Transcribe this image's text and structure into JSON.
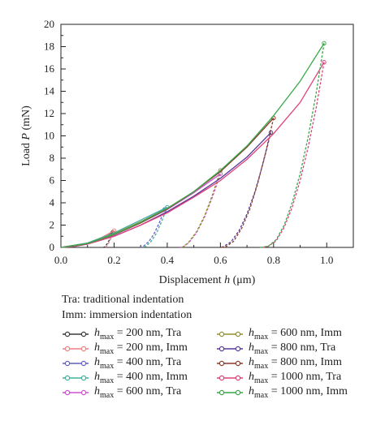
{
  "chart_data": {
    "type": "line",
    "title": "",
    "xlabel_prefix": "Displacement ",
    "xlabel_var": "h",
    "xlabel_unit": " (μm)",
    "ylabel_prefix": "Load ",
    "ylabel_var": "P",
    "ylabel_unit": " (mN)",
    "xlim": [
      0,
      1.1
    ],
    "ylim": [
      0,
      20
    ],
    "x_ticks": [
      "0.0",
      "0.2",
      "0.4",
      "0.6",
      "0.8",
      "1.0"
    ],
    "y_ticks": [
      "0",
      "2",
      "4",
      "6",
      "8",
      "10",
      "12",
      "14",
      "16",
      "18",
      "20"
    ],
    "grid": false,
    "legend_position": "bottom",
    "notes": [
      "Tra: traditional indentation",
      "Imm: immersion indentation"
    ],
    "series": [
      {
        "name": "= 200 nm, Tra",
        "color": "#3a3a3a",
        "marker": "square",
        "loading": [
          [
            0,
            0
          ],
          [
            0.05,
            0.08
          ],
          [
            0.1,
            0.3
          ],
          [
            0.15,
            0.75
          ],
          [
            0.195,
            1.35
          ]
        ],
        "unloading": [
          [
            0.195,
            1.35
          ],
          [
            0.185,
            0.8
          ],
          [
            0.175,
            0.35
          ],
          [
            0.165,
            0.05
          ],
          [
            0.16,
            0
          ]
        ]
      },
      {
        "name": "= 200 nm, Imm",
        "color": "#f08080",
        "marker": "circle",
        "loading": [
          [
            0,
            0
          ],
          [
            0.05,
            0.1
          ],
          [
            0.1,
            0.35
          ],
          [
            0.15,
            0.85
          ],
          [
            0.2,
            1.5
          ]
        ],
        "unloading": [
          [
            0.2,
            1.5
          ],
          [
            0.19,
            0.9
          ],
          [
            0.18,
            0.4
          ],
          [
            0.17,
            0.05
          ],
          [
            0.165,
            0
          ]
        ]
      },
      {
        "name": "= 400 nm, Tra",
        "color": "#6060c0",
        "marker": "triangle-up",
        "loading": [
          [
            0,
            0
          ],
          [
            0.1,
            0.35
          ],
          [
            0.2,
            1.2
          ],
          [
            0.3,
            2.3
          ],
          [
            0.39,
            3.4
          ]
        ],
        "unloading": [
          [
            0.39,
            3.4
          ],
          [
            0.37,
            2.2
          ],
          [
            0.35,
            1.2
          ],
          [
            0.33,
            0.5
          ],
          [
            0.31,
            0.1
          ],
          [
            0.3,
            0
          ]
        ]
      },
      {
        "name": "= 400 nm, Imm",
        "color": "#40b0a0",
        "marker": "triangle-down",
        "loading": [
          [
            0,
            0
          ],
          [
            0.1,
            0.4
          ],
          [
            0.2,
            1.3
          ],
          [
            0.3,
            2.45
          ],
          [
            0.4,
            3.6
          ]
        ],
        "unloading": [
          [
            0.4,
            3.6
          ],
          [
            0.38,
            2.4
          ],
          [
            0.36,
            1.3
          ],
          [
            0.34,
            0.55
          ],
          [
            0.32,
            0.1
          ],
          [
            0.31,
            0
          ]
        ]
      },
      {
        "name": "= 600 nm, Tra",
        "color": "#d050d0",
        "marker": "diamond",
        "loading": [
          [
            0,
            0
          ],
          [
            0.1,
            0.3
          ],
          [
            0.2,
            1.1
          ],
          [
            0.3,
            2.2
          ],
          [
            0.4,
            3.4
          ],
          [
            0.5,
            4.9
          ],
          [
            0.6,
            6.6
          ]
        ],
        "unloading": [
          [
            0.6,
            6.6
          ],
          [
            0.57,
            4.5
          ],
          [
            0.54,
            2.7
          ],
          [
            0.51,
            1.3
          ],
          [
            0.48,
            0.4
          ],
          [
            0.46,
            0.05
          ],
          [
            0.45,
            0
          ]
        ]
      },
      {
        "name": "= 600 nm, Imm",
        "color": "#909030",
        "marker": "diamond",
        "loading": [
          [
            0,
            0
          ],
          [
            0.1,
            0.35
          ],
          [
            0.2,
            1.2
          ],
          [
            0.3,
            2.3
          ],
          [
            0.4,
            3.5
          ],
          [
            0.5,
            5.0
          ],
          [
            0.6,
            6.9
          ]
        ],
        "unloading": [
          [
            0.6,
            6.9
          ],
          [
            0.57,
            4.7
          ],
          [
            0.54,
            2.8
          ],
          [
            0.51,
            1.4
          ],
          [
            0.48,
            0.45
          ],
          [
            0.46,
            0.05
          ],
          [
            0.45,
            0
          ]
        ]
      },
      {
        "name": "= 800 nm, Tra",
        "color": "#5a3a9a",
        "marker": "triangle-left",
        "loading": [
          [
            0,
            0
          ],
          [
            0.1,
            0.3
          ],
          [
            0.2,
            1.0
          ],
          [
            0.3,
            2.0
          ],
          [
            0.4,
            3.2
          ],
          [
            0.5,
            4.6
          ],
          [
            0.6,
            6.2
          ],
          [
            0.7,
            8.1
          ],
          [
            0.79,
            10.3
          ]
        ],
        "unloading": [
          [
            0.79,
            10.3
          ],
          [
            0.76,
            7.5
          ],
          [
            0.73,
            5.0
          ],
          [
            0.7,
            3.0
          ],
          [
            0.67,
            1.5
          ],
          [
            0.64,
            0.5
          ],
          [
            0.61,
            0.05
          ],
          [
            0.6,
            0
          ]
        ]
      },
      {
        "name": "= 800 nm, Imm",
        "color": "#8b3a2a",
        "marker": "triangle-right",
        "loading": [
          [
            0,
            0
          ],
          [
            0.1,
            0.35
          ],
          [
            0.2,
            1.15
          ],
          [
            0.3,
            2.2
          ],
          [
            0.4,
            3.45
          ],
          [
            0.5,
            5.0
          ],
          [
            0.6,
            6.8
          ],
          [
            0.7,
            9.0
          ],
          [
            0.8,
            11.6
          ]
        ],
        "unloading": [
          [
            0.8,
            11.6
          ],
          [
            0.77,
            8.5
          ],
          [
            0.74,
            5.7
          ],
          [
            0.71,
            3.4
          ],
          [
            0.68,
            1.7
          ],
          [
            0.65,
            0.55
          ],
          [
            0.62,
            0.05
          ],
          [
            0.6,
            0
          ]
        ]
      },
      {
        "name": "= 1000 nm, Tra",
        "color": "#e0407a",
        "marker": "star",
        "loading": [
          [
            0,
            0
          ],
          [
            0.1,
            0.3
          ],
          [
            0.2,
            1.0
          ],
          [
            0.3,
            2.0
          ],
          [
            0.4,
            3.1
          ],
          [
            0.5,
            4.5
          ],
          [
            0.6,
            6.0
          ],
          [
            0.7,
            7.9
          ],
          [
            0.8,
            10.2
          ],
          [
            0.9,
            13.0
          ],
          [
            0.99,
            16.6
          ]
        ],
        "unloading": [
          [
            0.99,
            16.6
          ],
          [
            0.96,
            12.5
          ],
          [
            0.93,
            9.0
          ],
          [
            0.9,
            6.0
          ],
          [
            0.87,
            3.6
          ],
          [
            0.84,
            1.8
          ],
          [
            0.81,
            0.6
          ],
          [
            0.78,
            0.1
          ],
          [
            0.76,
            0
          ]
        ]
      },
      {
        "name": "= 1000 nm, Imm",
        "color": "#3aa84a",
        "marker": "hexagon",
        "loading": [
          [
            0,
            0
          ],
          [
            0.1,
            0.35
          ],
          [
            0.2,
            1.15
          ],
          [
            0.3,
            2.25
          ],
          [
            0.4,
            3.5
          ],
          [
            0.5,
            5.0
          ],
          [
            0.6,
            6.9
          ],
          [
            0.7,
            9.1
          ],
          [
            0.8,
            11.8
          ],
          [
            0.9,
            14.9
          ],
          [
            0.99,
            18.3
          ]
        ],
        "unloading": [
          [
            0.99,
            18.3
          ],
          [
            0.96,
            13.8
          ],
          [
            0.93,
            9.9
          ],
          [
            0.9,
            6.6
          ],
          [
            0.87,
            4.0
          ],
          [
            0.84,
            2.0
          ],
          [
            0.81,
            0.7
          ],
          [
            0.78,
            0.1
          ],
          [
            0.75,
            0
          ]
        ]
      }
    ]
  },
  "legend": {
    "var": "h",
    "sub": "max"
  }
}
